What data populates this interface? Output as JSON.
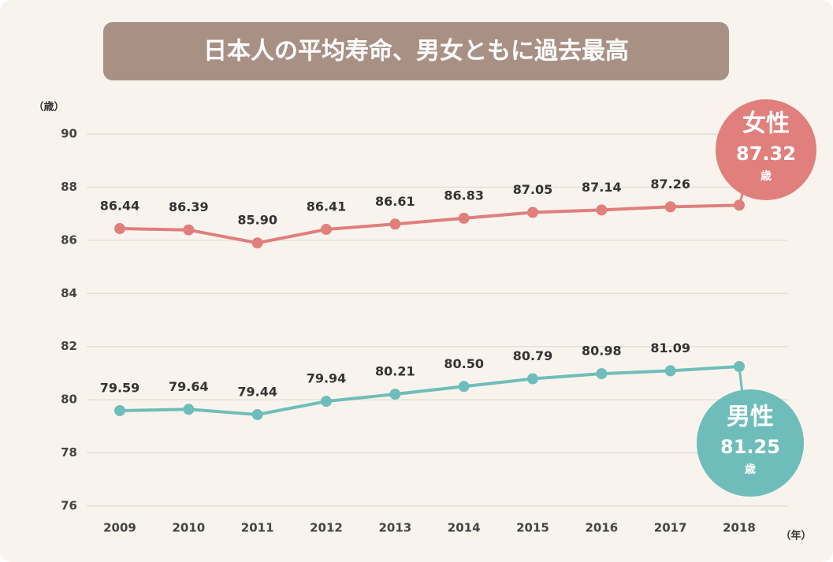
{
  "chart_data": {
    "type": "line",
    "title": "日本人の平均寿命、男女ともに過去最高",
    "y_unit": "（歳）",
    "x_unit": "（年）",
    "value_unit": "歳",
    "categories": [
      "2009",
      "2010",
      "2011",
      "2012",
      "2013",
      "2014",
      "2015",
      "2016",
      "2017",
      "2018"
    ],
    "series": [
      {
        "name": "女性",
        "color": "#e07f7c",
        "values": [
          86.44,
          86.39,
          85.9,
          86.41,
          86.61,
          86.83,
          87.05,
          87.14,
          87.26,
          87.32
        ],
        "value_labels": [
          "86.44",
          "86.39",
          "85.90",
          "86.41",
          "86.61",
          "86.83",
          "87.05",
          "87.14",
          "87.26",
          "87.32"
        ]
      },
      {
        "name": "男性",
        "color": "#6fbdbb",
        "values": [
          79.59,
          79.64,
          79.44,
          79.94,
          80.21,
          80.5,
          80.79,
          80.98,
          81.09,
          81.25
        ],
        "value_labels": [
          "79.59",
          "79.64",
          "79.44",
          "79.94",
          "80.21",
          "80.50",
          "80.79",
          "80.98",
          "81.09",
          "81.25"
        ]
      }
    ],
    "ylim": [
      76,
      90
    ],
    "yticks": [
      76,
      78,
      80,
      82,
      84,
      86,
      88,
      90
    ],
    "grid": true
  }
}
